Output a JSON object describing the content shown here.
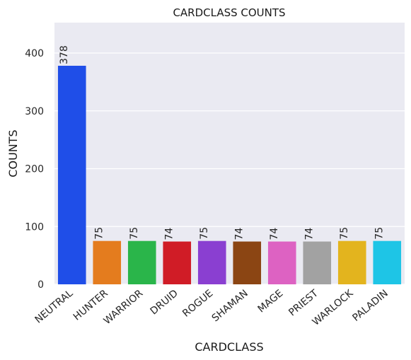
{
  "chart_data": {
    "type": "bar",
    "title": "CARDCLASS COUNTS",
    "xlabel": "CARDCLASS",
    "ylabel": "COUNTS",
    "categories": [
      "NEUTRAL",
      "HUNTER",
      "WARRIOR",
      "DRUID",
      "ROGUE",
      "SHAMAN",
      "MAGE",
      "PRIEST",
      "WARLOCK",
      "PALADIN"
    ],
    "values": [
      378,
      75,
      75,
      74,
      75,
      74,
      74,
      74,
      75,
      75
    ],
    "colors": [
      "#1f4ee8",
      "#e47c1e",
      "#2ab54a",
      "#d01c26",
      "#8a3fd1",
      "#8b4513",
      "#dd62c2",
      "#a2a2a2",
      "#e3b41e",
      "#1ec5e6"
    ],
    "yticks": [
      0,
      100,
      200,
      300,
      400
    ],
    "ylim": [
      0,
      453
    ],
    "grid": true,
    "background": "#eaeaf2"
  }
}
